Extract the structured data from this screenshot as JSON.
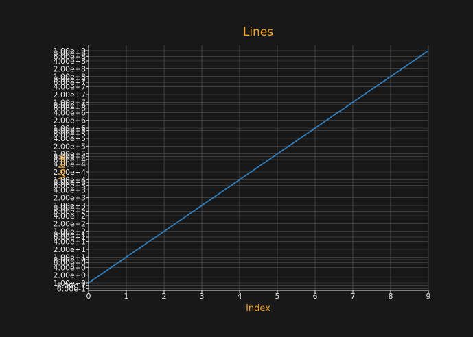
{
  "colors": {
    "background": "#181818",
    "plot_background": "#181818",
    "grid": "#505050",
    "axis_text": "#e6e6e6",
    "title": "#f5a31a",
    "line": "#2f7fbf"
  },
  "chart_data": {
    "type": "line",
    "title": "Lines",
    "xlabel": "Index",
    "ylabel": "Value",
    "xlim": [
      0,
      9
    ],
    "ylog": true,
    "ylim": [
      0.1,
      1000000000
    ],
    "xticks": [
      0,
      1,
      2,
      3,
      4,
      5,
      6,
      7,
      8,
      9
    ],
    "ytick_label_format": "scientific",
    "ytick_mantissas": [
      2,
      4,
      6,
      8,
      10
    ],
    "series": [
      {
        "x": [
          0,
          1,
          2,
          3,
          4,
          5,
          6,
          7,
          8,
          9
        ],
        "values": [
          1,
          10,
          100,
          1000,
          10000,
          100000,
          1000000,
          10000000,
          100000000,
          1000000000
        ]
      }
    ],
    "grid": true,
    "legend": "none"
  }
}
